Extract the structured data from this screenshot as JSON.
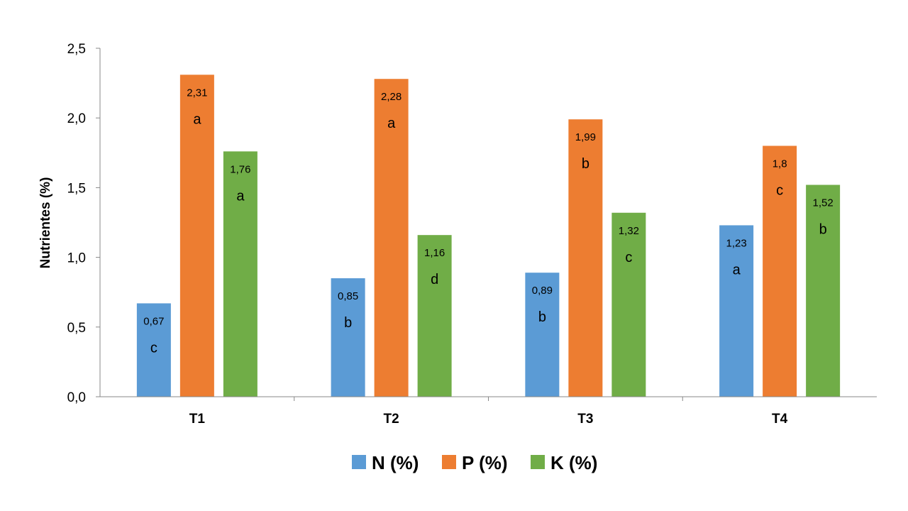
{
  "chart_data": {
    "type": "bar",
    "ylabel": "Nutrientes (%)",
    "xlabel": "",
    "ylim": [
      0,
      2.5
    ],
    "yticks": [
      "0,0",
      "0,5",
      "1,0",
      "1,5",
      "2,0",
      "2,5"
    ],
    "categories": [
      "T1",
      "T2",
      "T3",
      "T4"
    ],
    "grid": false,
    "legend_position": "bottom",
    "series": [
      {
        "name": "N (%)",
        "color": "#5b9bd5",
        "values": [
          0.67,
          0.85,
          0.89,
          1.23
        ],
        "labels": [
          "0,67",
          "0,85",
          "0,89",
          "1,23"
        ],
        "letters": [
          "c",
          "b",
          "b",
          "a"
        ]
      },
      {
        "name": "P (%)",
        "color": "#ed7d31",
        "values": [
          2.31,
          2.28,
          1.99,
          1.8
        ],
        "labels": [
          "2,31",
          "2,28",
          "1,99",
          "1,8"
        ],
        "letters": [
          "a",
          "a",
          "b",
          "c"
        ]
      },
      {
        "name": "K (%)",
        "color": "#70ad47",
        "values": [
          1.76,
          1.16,
          1.32,
          1.52
        ],
        "labels": [
          "1,76",
          "1,16",
          "1,32",
          "1,52"
        ],
        "letters": [
          "a",
          "d",
          "c",
          "b"
        ]
      }
    ]
  }
}
